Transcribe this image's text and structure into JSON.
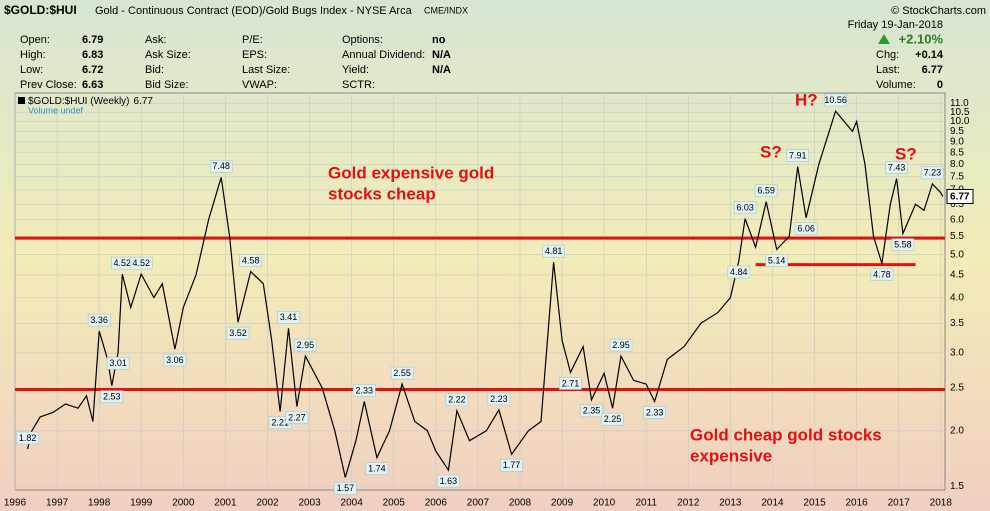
{
  "header": {
    "symbol": "$GOLD:$HUI",
    "description": "Gold - Continuous Contract (EOD)/Gold Bugs Index - NYSE Arca",
    "exchange": "CME/INDX",
    "brand": "© StockCharts.com",
    "date": "Friday 19-Jan-2018",
    "change_pct": "+2.10%",
    "fields": [
      [
        {
          "label": "Open:",
          "value": "6.79"
        },
        {
          "label": "High:",
          "value": "6.83"
        },
        {
          "label": "Low:",
          "value": "6.72"
        },
        {
          "label": "Prev Close:",
          "value": "6.63"
        }
      ],
      [
        {
          "label": "Ask:"
        },
        {
          "label": "Ask Size:"
        },
        {
          "label": "Bid:"
        },
        {
          "label": "Bid Size:"
        }
      ],
      [
        {
          "label": "P/E:"
        },
        {
          "label": "EPS:"
        },
        {
          "label": "Last Size:"
        },
        {
          "label": "VWAP:"
        }
      ],
      [
        {
          "label": "Options:",
          "value": "no"
        },
        {
          "label": "Annual Dividend:",
          "value": "N/A"
        },
        {
          "label": "Yield:",
          "value": "N/A"
        },
        {
          "label": "SCTR:"
        }
      ]
    ],
    "right": [
      {
        "label": "Chg:",
        "value": "+0.14"
      },
      {
        "label": "Last:",
        "value": "6.77"
      },
      {
        "label": "Volume:",
        "value": "0"
      }
    ]
  },
  "chart_data": {
    "type": "line",
    "log_y": true,
    "grid": true,
    "legend_volume": "Volume undef",
    "last_value": 6.77,
    "x": [
      1996.3,
      1996.4,
      1996.6,
      1996.9,
      1997.2,
      1997.5,
      1997.7,
      1997.85,
      1998.0,
      1998.2,
      1998.3,
      1998.45,
      1998.55,
      1998.75,
      1999.0,
      1999.3,
      1999.5,
      1999.8,
      2000.0,
      2000.3,
      2000.6,
      2000.9,
      2001.1,
      2001.3,
      2001.6,
      2001.9,
      2002.1,
      2002.3,
      2002.5,
      2002.7,
      2002.9,
      2003.3,
      2003.6,
      2003.85,
      2004.1,
      2004.3,
      2004.6,
      2004.9,
      2005.2,
      2005.5,
      2005.8,
      2006.0,
      2006.3,
      2006.5,
      2006.8,
      2007.2,
      2007.5,
      2007.8,
      2008.2,
      2008.5,
      2008.8,
      2009.0,
      2009.2,
      2009.5,
      2009.7,
      2010.0,
      2010.2,
      2010.4,
      2010.7,
      2011.0,
      2011.2,
      2011.5,
      2011.9,
      2012.3,
      2012.7,
      2013.0,
      2013.2,
      2013.35,
      2013.6,
      2013.85,
      2014.1,
      2014.4,
      2014.6,
      2014.8,
      2015.1,
      2015.5,
      2015.9,
      2016.0,
      2016.2,
      2016.4,
      2016.6,
      2016.8,
      2016.95,
      2017.1,
      2017.4,
      2017.6,
      2017.8,
      2018.0,
      2018.05
    ],
    "series": [
      {
        "name": "$GOLD:$HUI (Weekly)",
        "color": "#000000",
        "values": [
          1.82,
          2.0,
          2.15,
          2.2,
          2.3,
          2.25,
          2.4,
          2.1,
          3.36,
          2.9,
          2.53,
          3.01,
          4.52,
          3.8,
          4.52,
          4.0,
          4.3,
          3.06,
          3.8,
          4.5,
          6.0,
          7.48,
          5.5,
          3.52,
          4.58,
          4.3,
          3.2,
          2.21,
          3.41,
          2.27,
          2.95,
          2.5,
          2.0,
          1.57,
          1.9,
          2.33,
          1.74,
          2.0,
          2.55,
          2.1,
          2.0,
          1.8,
          1.63,
          2.22,
          1.9,
          2.0,
          2.23,
          1.77,
          2.0,
          2.1,
          4.81,
          3.2,
          2.71,
          3.1,
          2.35,
          2.7,
          2.25,
          2.95,
          2.6,
          2.55,
          2.33,
          2.9,
          3.1,
          3.5,
          3.7,
          4.0,
          4.84,
          6.03,
          5.2,
          6.59,
          5.14,
          5.5,
          7.91,
          6.06,
          8.0,
          10.56,
          9.5,
          10.0,
          8.0,
          5.5,
          4.78,
          6.5,
          7.43,
          5.58,
          6.5,
          6.3,
          7.23,
          6.9,
          6.77
        ]
      }
    ],
    "annotations": [
      {
        "x": 1996.3,
        "value": 1.82
      },
      {
        "x": 1998.0,
        "value": 3.36
      },
      {
        "x": 1998.3,
        "value": 2.53
      },
      {
        "x": 1998.45,
        "value": 3.01
      },
      {
        "x": 1998.55,
        "value": 4.52
      },
      {
        "x": 1999.0,
        "value": 4.52
      },
      {
        "x": 1999.8,
        "value": 3.06
      },
      {
        "x": 2000.9,
        "value": 7.48
      },
      {
        "x": 2001.3,
        "value": 3.52
      },
      {
        "x": 2001.6,
        "value": 4.58
      },
      {
        "x": 2002.3,
        "value": 2.21
      },
      {
        "x": 2002.5,
        "value": 3.41
      },
      {
        "x": 2002.7,
        "value": 2.27
      },
      {
        "x": 2002.9,
        "value": 2.95
      },
      {
        "x": 2003.85,
        "value": 1.57
      },
      {
        "x": 2004.3,
        "value": 2.33
      },
      {
        "x": 2004.6,
        "value": 1.74
      },
      {
        "x": 2005.2,
        "value": 2.55
      },
      {
        "x": 2006.3,
        "value": 1.63
      },
      {
        "x": 2006.5,
        "value": 2.22
      },
      {
        "x": 2007.5,
        "value": 2.23
      },
      {
        "x": 2007.8,
        "value": 1.77
      },
      {
        "x": 2008.8,
        "value": 4.81
      },
      {
        "x": 2009.2,
        "value": 2.71
      },
      {
        "x": 2009.7,
        "value": 2.35
      },
      {
        "x": 2010.2,
        "value": 2.25
      },
      {
        "x": 2010.4,
        "value": 2.95
      },
      {
        "x": 2011.2,
        "value": 2.33
      },
      {
        "x": 2013.2,
        "value": 4.84
      },
      {
        "x": 2013.35,
        "value": 6.03
      },
      {
        "x": 2013.85,
        "value": 6.59
      },
      {
        "x": 2014.1,
        "value": 5.14
      },
      {
        "x": 2014.6,
        "value": 7.91
      },
      {
        "x": 2014.8,
        "value": 6.06
      },
      {
        "x": 2015.5,
        "value": 10.56
      },
      {
        "x": 2016.6,
        "value": 4.78
      },
      {
        "x": 2016.95,
        "value": 7.43
      },
      {
        "x": 2017.1,
        "value": 5.58
      },
      {
        "x": 2017.8,
        "value": 7.23
      }
    ],
    "hlines": [
      {
        "value": 5.45
      },
      {
        "value": 2.48
      },
      {
        "value": 4.75,
        "from": 2013.6,
        "to": 2017.4
      }
    ],
    "notes": {
      "upper": [
        "Gold expensive gold",
        "stocks cheap"
      ],
      "lower": [
        "Gold cheap gold stocks",
        "expensive"
      ],
      "head": "H?",
      "shoulder_left": "S?",
      "shoulder_right": "S?"
    },
    "xlim": [
      1996,
      2018.1
    ],
    "xticks": [
      1996,
      1997,
      1998,
      1999,
      2000,
      2001,
      2002,
      2003,
      2004,
      2005,
      2006,
      2007,
      2008,
      2009,
      2010,
      2011,
      2012,
      2013,
      2014,
      2015,
      2016,
      2017,
      2018
    ],
    "ylim": [
      1.47,
      11.6
    ],
    "yticks": [
      1.5,
      {
        "value": 2,
        "label": "2.0"
      },
      2.5,
      {
        "value": 3,
        "label": "3.0"
      },
      3.5,
      {
        "value": 4,
        "label": "4.0"
      },
      4.5,
      {
        "value": 5,
        "label": "5.0"
      },
      5.5,
      {
        "value": 6,
        "label": "6.0"
      },
      6.5,
      {
        "value": 7,
        "label": "7.0"
      },
      7.5,
      {
        "value": 8,
        "label": "8.0"
      },
      8.5,
      {
        "value": 9,
        "label": "9.0"
      },
      9.5,
      {
        "value": 10,
        "label": "10.0"
      },
      10.5,
      {
        "value": 11,
        "label": "11.0"
      }
    ]
  }
}
